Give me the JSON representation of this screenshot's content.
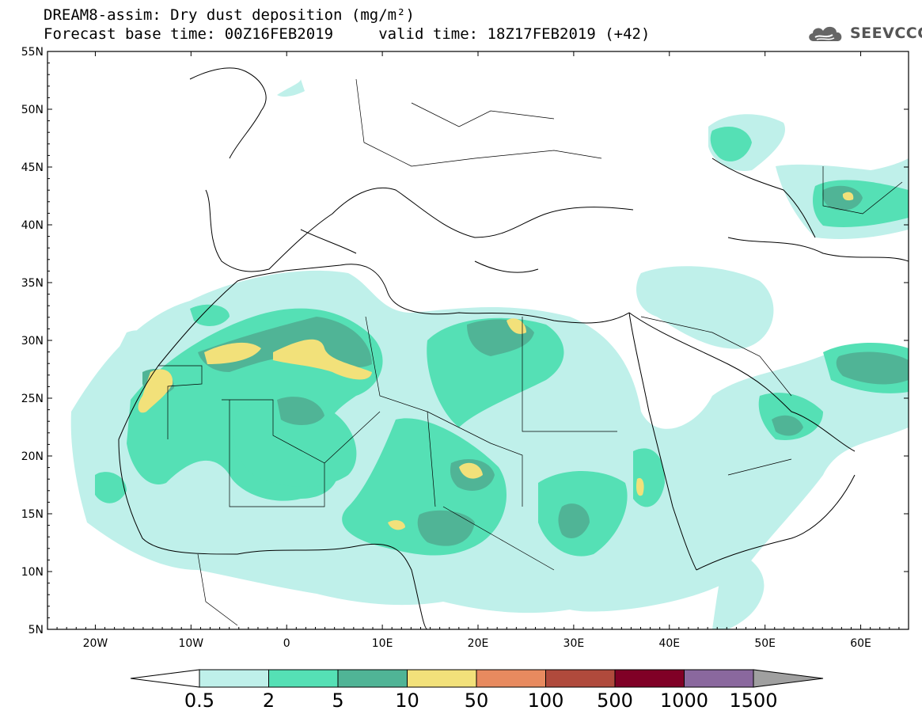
{
  "header": {
    "title_line1": "DREAM8-assim: Dry dust deposition (mg/m²)",
    "title_line2": "Forecast base time: 00Z16FEB2019     valid time: 18Z17FEB2019 (+42)",
    "logo_text": "SEEVCCC",
    "logo_icon": "cloud-icon"
  },
  "map": {
    "lat_labels": [
      "55N",
      "50N",
      "45N",
      "40N",
      "35N",
      "30N",
      "25N",
      "20N",
      "15N",
      "10N",
      "5N"
    ],
    "lon_labels": [
      "20W",
      "10W",
      "0",
      "10E",
      "20E",
      "30E",
      "40E",
      "50E",
      "60E"
    ],
    "lat_range": [
      5,
      55
    ],
    "lon_range": [
      -25,
      65
    ]
  },
  "colorbar": {
    "labels": [
      "0.5",
      "2",
      "5",
      "10",
      "50",
      "100",
      "500",
      "1000",
      "1500"
    ],
    "colors": [
      "#bff0ea",
      "#55e0b5",
      "#50b496",
      "#f2e17a",
      "#e88a5f",
      "#b04a3c",
      "#800026",
      "#8a689e",
      "#a0a0a0"
    ]
  }
}
